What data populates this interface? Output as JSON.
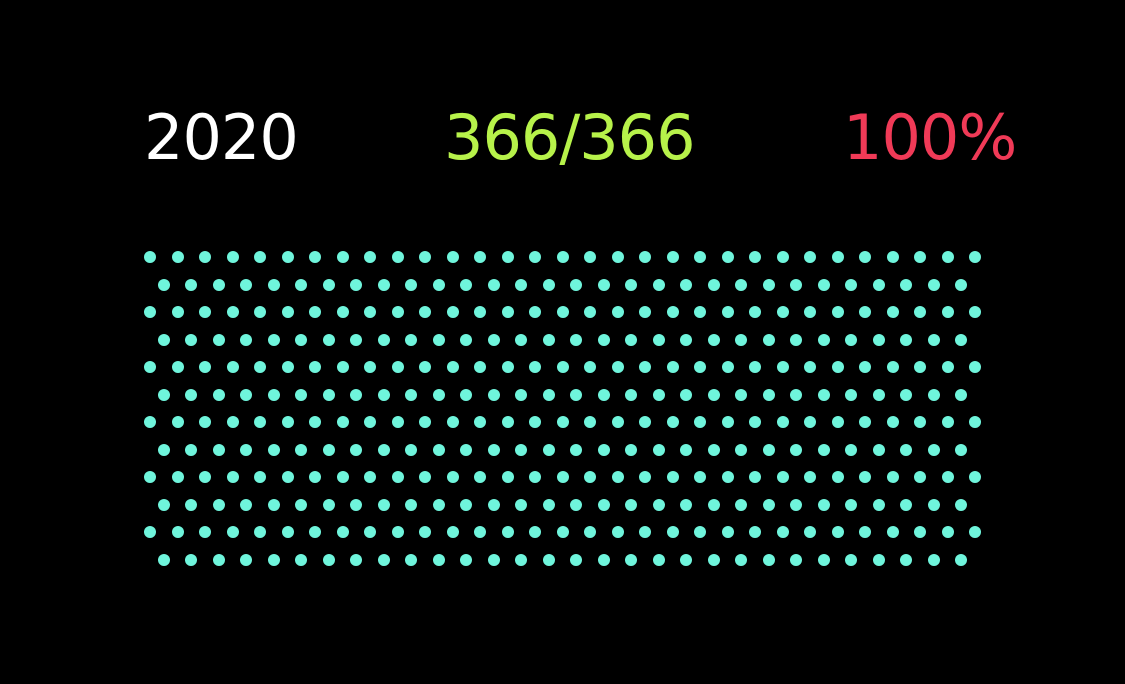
{
  "header": {
    "year": "2020",
    "count": "366/366",
    "percent": "100%"
  },
  "progress": {
    "days_completed": 366,
    "days_total": 366,
    "fraction_complete": 1.0
  },
  "colors": {
    "background": "#000000",
    "year_text": "#ffffff",
    "count_text": "#b7f24a",
    "percent_text": "#f03a57",
    "dot_complete": "#6ff5dc",
    "dot_incomplete": "#2a2a2a"
  }
}
